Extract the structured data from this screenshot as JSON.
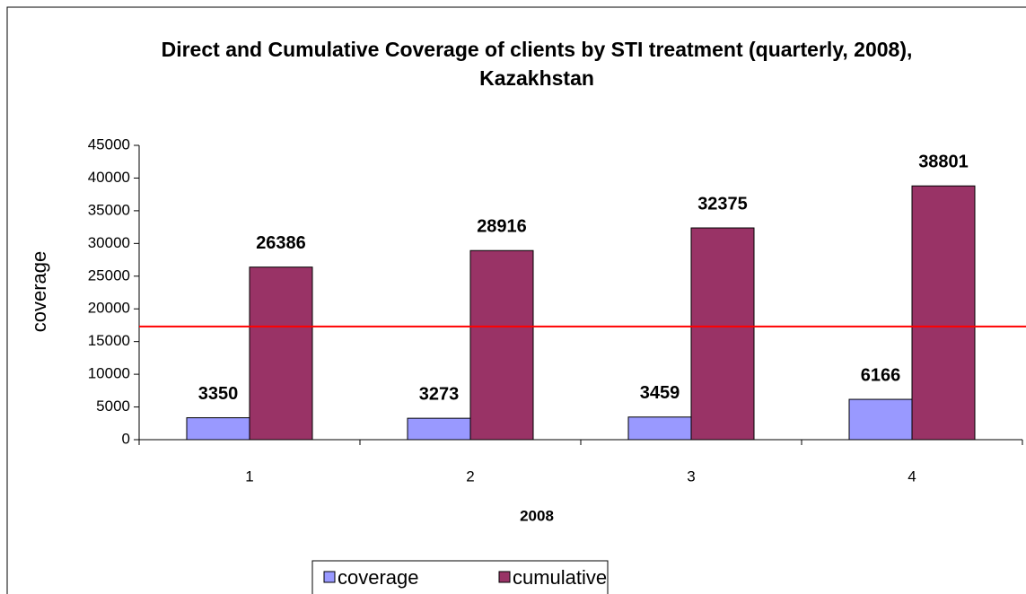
{
  "chart_data": {
    "type": "bar",
    "title": [
      "Direct and Cumulative Coverage of clients by STI treatment (quarterly, 2008),",
      "Kazakhstan"
    ],
    "x_label": "2008",
    "y_label": "coverage",
    "categories": [
      "1",
      "2",
      "3",
      "4"
    ],
    "series": [
      {
        "name": "coverage",
        "color": "#9999ff",
        "values": [
          3350,
          3273,
          3459,
          6166
        ]
      },
      {
        "name": "cumulative",
        "color": "#993366",
        "values": [
          26386,
          28916,
          32375,
          38801
        ]
      }
    ],
    "ylim": [
      0,
      45000
    ],
    "yticks": [
      0,
      5000,
      10000,
      15000,
      20000,
      25000,
      30000,
      35000,
      40000,
      45000
    ],
    "reference_line": {
      "value": 17300,
      "color": "#ff0000"
    },
    "legend": "bottom"
  }
}
